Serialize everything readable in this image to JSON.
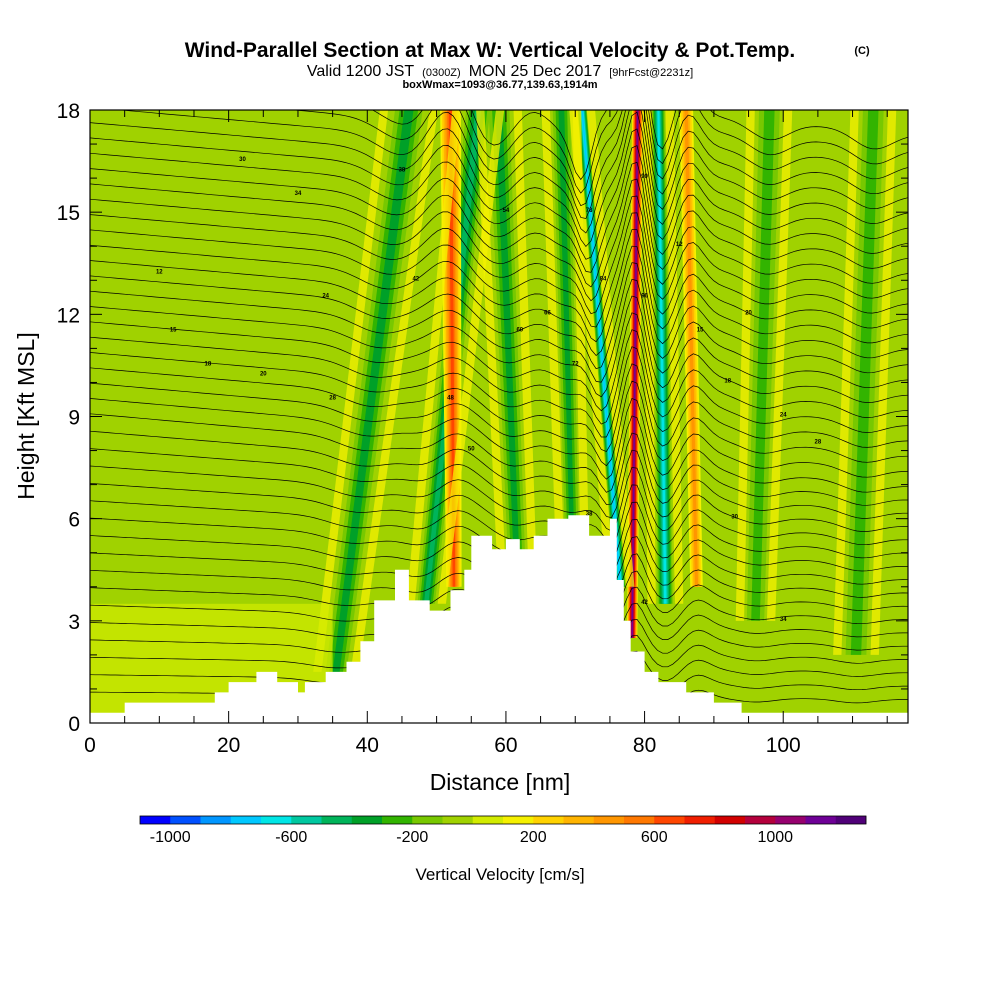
{
  "header": {
    "title": "Wind-Parallel Section at Max W: Vertical Velocity & Pot.Temp.",
    "copyright": "(C)",
    "valid_prefix": "Valid 1200 JST",
    "valid_zulu": "(0300Z)",
    "valid_date": "MON 25 Dec 2017",
    "forecast": "[9hrFcst@2231z]",
    "box_info": "boxWmax=1093@36.77,139.63,1914m"
  },
  "chart_data": {
    "type": "heatmap",
    "xlabel": "Distance [nm]",
    "ylabel": "Height [Kft MSL]",
    "xlim": [
      0,
      118
    ],
    "ylim": [
      0,
      18
    ],
    "x_ticks": [
      "0",
      "20",
      "40",
      "60",
      "80",
      "100"
    ],
    "x_tick_values": [
      0,
      20,
      40,
      60,
      80,
      100
    ],
    "y_ticks": [
      "0",
      "3",
      "6",
      "9",
      "12",
      "15",
      "18"
    ],
    "y_tick_values": [
      0,
      3,
      6,
      9,
      12,
      15,
      18
    ],
    "colorbar": {
      "title": "Vertical Velocity [cm/s]",
      "labels": [
        "-1000",
        "-600",
        "-200",
        "200",
        "600",
        "1000"
      ],
      "label_values": [
        -1000,
        -600,
        -200,
        200,
        600,
        1000
      ],
      "min": -1100,
      "max": 1300,
      "step": 100,
      "colors": [
        "#0000ff",
        "#0050ff",
        "#0096ff",
        "#00c8ff",
        "#00e6e6",
        "#00c8a0",
        "#00b45a",
        "#00a028",
        "#32b400",
        "#78c800",
        "#a0d200",
        "#d2eb00",
        "#f5f000",
        "#ffd200",
        "#ffb400",
        "#ff9600",
        "#ff7800",
        "#ff4600",
        "#f01e00",
        "#d20000",
        "#b4003c",
        "#96006e",
        "#6e0096",
        "#500078"
      ]
    },
    "terrain_profile": [
      [
        0,
        0.3
      ],
      [
        5,
        0.3
      ],
      [
        5,
        0.6
      ],
      [
        18,
        0.6
      ],
      [
        18,
        0.9
      ],
      [
        20,
        0.9
      ],
      [
        20,
        1.2
      ],
      [
        24,
        1.2
      ],
      [
        24,
        1.5
      ],
      [
        27,
        1.5
      ],
      [
        27,
        1.2
      ],
      [
        30,
        1.2
      ],
      [
        30,
        0.9
      ],
      [
        31,
        0.9
      ],
      [
        31,
        1.2
      ],
      [
        34,
        1.2
      ],
      [
        34,
        1.5
      ],
      [
        37,
        1.5
      ],
      [
        37,
        1.8
      ],
      [
        39,
        1.8
      ],
      [
        39,
        2.4
      ],
      [
        41,
        2.4
      ],
      [
        41,
        3.6
      ],
      [
        44,
        3.6
      ],
      [
        44,
        4.5
      ],
      [
        46,
        4.5
      ],
      [
        46,
        3.6
      ],
      [
        49,
        3.6
      ],
      [
        49,
        3.3
      ],
      [
        52,
        3.3
      ],
      [
        52,
        3.9
      ],
      [
        54,
        3.9
      ],
      [
        54,
        4.5
      ],
      [
        55,
        4.5
      ],
      [
        55,
        5.5
      ],
      [
        58,
        5.5
      ],
      [
        58,
        5.1
      ],
      [
        60,
        5.1
      ],
      [
        60,
        5.4
      ],
      [
        62,
        5.4
      ],
      [
        62,
        5.1
      ],
      [
        64,
        5.1
      ],
      [
        64,
        5.5
      ],
      [
        66,
        5.5
      ],
      [
        66,
        6.0
      ],
      [
        69,
        6.0
      ],
      [
        69,
        6.1
      ],
      [
        72,
        6.1
      ],
      [
        72,
        5.5
      ],
      [
        75,
        5.5
      ],
      [
        75,
        6.0
      ],
      [
        76,
        6.0
      ],
      [
        76,
        4.2
      ],
      [
        77,
        4.2
      ],
      [
        77,
        3.0
      ],
      [
        78,
        3.0
      ],
      [
        78,
        2.1
      ],
      [
        80,
        2.1
      ],
      [
        80,
        1.5
      ],
      [
        82,
        1.5
      ],
      [
        82,
        1.2
      ],
      [
        86,
        1.2
      ],
      [
        86,
        0.9
      ],
      [
        90,
        0.9
      ],
      [
        90,
        0.6
      ],
      [
        94,
        0.6
      ],
      [
        94,
        0.3
      ],
      [
        106,
        0.3
      ],
      [
        106,
        0.3
      ],
      [
        118,
        0.3
      ]
    ],
    "vertical_velocity_bands": [
      {
        "x_base": 35.5,
        "x_top": 46,
        "w_base": 3.0,
        "w_top": 4.0,
        "h_start": 1.5,
        "value": -250
      },
      {
        "x_base": 48.5,
        "x_top": 56,
        "w_base": 2.5,
        "w_top": 3.5,
        "h_start": 3.5,
        "value": -350
      },
      {
        "x_base": 52.5,
        "x_top": 52,
        "w_base": 2.2,
        "w_top": 3.0,
        "h_start": 4.0,
        "value": 550
      },
      {
        "x_base": 61.5,
        "x_top": 59,
        "w_base": 2.5,
        "w_top": 3.0,
        "h_start": 5.0,
        "value": -300
      },
      {
        "x_base": 69.5,
        "x_top": 68,
        "w_base": 2.0,
        "w_top": 2.5,
        "h_start": 5.5,
        "value": -250
      },
      {
        "x_base": 76.5,
        "x_top": 71,
        "w_base": 1.6,
        "w_top": 1.4,
        "h_start": 4.0,
        "value": -700
      },
      {
        "x_base": 78.2,
        "x_top": 79,
        "w_base": 1.5,
        "w_top": 1.6,
        "h_start": 2.5,
        "value": 1050
      },
      {
        "x_base": 83.0,
        "x_top": 82,
        "w_base": 2.2,
        "w_top": 1.8,
        "h_start": 3.5,
        "value": -550
      },
      {
        "x_base": 87.5,
        "x_top": 86,
        "w_base": 1.8,
        "w_top": 2.0,
        "h_start": 4.0,
        "value": 400
      },
      {
        "x_base": 96.0,
        "x_top": 98,
        "w_base": 2.5,
        "w_top": 3.0,
        "h_start": 3.0,
        "value": -200
      },
      {
        "x_base": 110.5,
        "x_top": 113,
        "w_base": 3.0,
        "w_top": 3.0,
        "h_start": 2.0,
        "value": -200
      }
    ],
    "contour_label_text": [
      "12",
      "15",
      "18",
      "20",
      "24",
      "28",
      "30",
      "34",
      "38",
      "42",
      "48",
      "50",
      "54",
      "60",
      "66",
      "72",
      "78",
      "84",
      "90",
      "96"
    ]
  },
  "colors": {
    "background_field": "#a0d200",
    "terrain": "#ffffff",
    "contour": "#000000",
    "axis": "#000000"
  }
}
